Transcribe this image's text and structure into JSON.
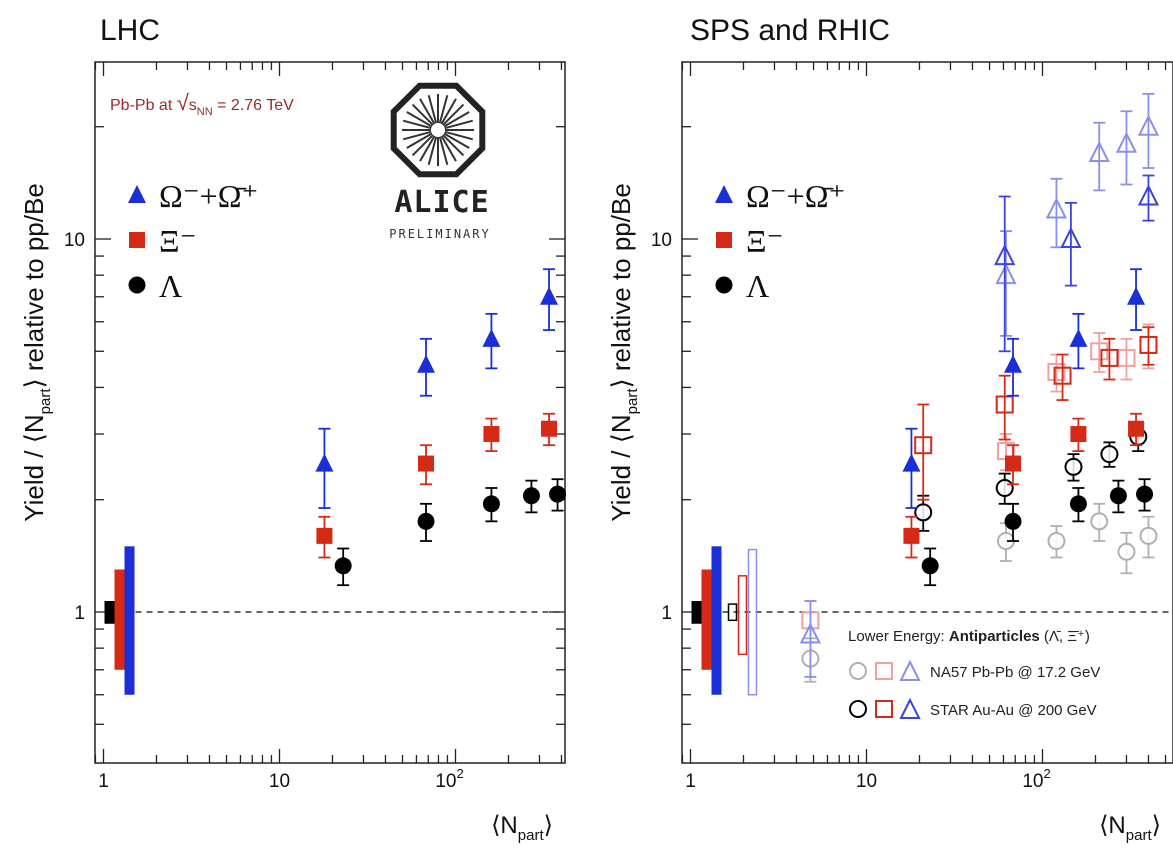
{
  "panels": [
    {
      "title": "LHC",
      "energy_label": "Pb-Pb at √s_NN = 2.76 TeV",
      "energy_text": {
        "pre": "Pb-Pb at ",
        "s": "s",
        "sub": "NN",
        "post": " = 2.76 TeV"
      },
      "logo": {
        "name": "ALICE",
        "sub": "PRELIMINARY"
      },
      "legend": [
        {
          "key": "omega",
          "label": "Ω⁻+Ω̄⁺",
          "color": "#1a2fd6"
        },
        {
          "key": "xi",
          "label": "Ξ⁻",
          "color": "#d42a16"
        },
        {
          "key": "lambda",
          "label": "Λ",
          "color": "#000000"
        }
      ]
    },
    {
      "title": "SPS and RHIC",
      "legend": [
        {
          "key": "omega",
          "label": "Ω⁻+Ω̄⁺",
          "color": "#1a2fd6"
        },
        {
          "key": "xi",
          "label": "Ξ⁻",
          "color": "#d42a16"
        },
        {
          "key": "lambda",
          "label": "Λ",
          "color": "#000000"
        }
      ],
      "lower_energy_legend": {
        "header_pre": "Lower Energy: ",
        "header_bold": "Antiparticles",
        "header_post": " (Λ̄, Ξ̄⁺)",
        "rows": [
          "NA57 Pb-Pb @ 17.2 GeV",
          "STAR Au-Au @ 200 GeV"
        ]
      }
    }
  ],
  "axes": {
    "ylabel": "Yield / ⟨N_part⟩ relative to pp/Be",
    "ylabel_parts": {
      "pre": "Yield / ⟨N",
      "sub": "part",
      "post": "⟩ relative to pp/Be"
    },
    "xlabel": "⟨N_part⟩",
    "xlabel_parts": {
      "pre": "⟨N",
      "sub": "part",
      "post": "⟩"
    },
    "x_ticks": [
      {
        "v": 1,
        "label": "1"
      },
      {
        "v": 10,
        "label": "10"
      },
      {
        "v": 100,
        "label": "10",
        "exp": "2"
      }
    ],
    "y_ticks": [
      {
        "v": 1,
        "label": "1"
      },
      {
        "v": 10,
        "label": "10"
      }
    ]
  },
  "chart_data": [
    {
      "type": "scatter",
      "title": "LHC",
      "x_scale": "log",
      "y_scale": "log",
      "xlim": [
        0.75,
        500
      ],
      "ylim": [
        0.43,
        28
      ],
      "reference_line": 1,
      "series": [
        {
          "name": "Ω⁻+Ω̄⁺",
          "marker": "filled-triangle",
          "color": "#1a2fd6",
          "x": [
            18,
            68,
            160,
            340
          ],
          "y": [
            2.5,
            4.6,
            5.4,
            7.0
          ],
          "yerr": [
            0.6,
            0.8,
            0.9,
            1.3
          ]
        },
        {
          "name": "Ξ⁻",
          "marker": "filled-square",
          "color": "#d42a16",
          "x": [
            18,
            68,
            160,
            340
          ],
          "y": [
            1.6,
            2.5,
            3.0,
            3.1
          ],
          "yerr": [
            0.2,
            0.3,
            0.3,
            0.3
          ]
        },
        {
          "name": "Λ",
          "marker": "filled-circle",
          "color": "#000000",
          "x": [
            23,
            68,
            160,
            270,
            380
          ],
          "y": [
            1.33,
            1.75,
            1.95,
            2.05,
            2.07
          ],
          "yerr": [
            0.15,
            0.2,
            0.2,
            0.2,
            0.2
          ]
        }
      ],
      "pp_normalization_uncertainty": [
        {
          "series": "Λ",
          "color": "#000000",
          "low": 0.93,
          "high": 1.07
        },
        {
          "series": "Ξ⁻",
          "color": "#d42a16",
          "low": 0.7,
          "high": 1.3
        },
        {
          "series": "Ω⁻+Ω̄⁺",
          "color": "#1a2fd6",
          "low": 0.6,
          "high": 1.5
        }
      ]
    },
    {
      "type": "scatter",
      "title": "SPS and RHIC",
      "x_scale": "log",
      "y_scale": "log",
      "xlim": [
        0.75,
        500
      ],
      "ylim": [
        0.43,
        28
      ],
      "reference_line": 1,
      "series": [
        {
          "name": "Ω⁻+Ω̄⁺",
          "marker": "filled-triangle",
          "color": "#1a2fd6",
          "x": [
            18,
            68,
            160,
            340
          ],
          "y": [
            2.5,
            4.6,
            5.4,
            7.0
          ],
          "yerr": [
            0.6,
            0.8,
            0.9,
            1.3
          ]
        },
        {
          "name": "Ξ⁻",
          "marker": "filled-square",
          "color": "#d42a16",
          "x": [
            18,
            68,
            160,
            340
          ],
          "y": [
            1.6,
            2.5,
            3.0,
            3.1
          ],
          "yerr": [
            0.2,
            0.3,
            0.3,
            0.3
          ]
        },
        {
          "name": "Λ",
          "marker": "filled-circle",
          "color": "#000000",
          "x": [
            23,
            68,
            160,
            270,
            380
          ],
          "y": [
            1.33,
            1.75,
            1.95,
            2.05,
            2.07
          ],
          "yerr": [
            0.15,
            0.2,
            0.2,
            0.2,
            0.2
          ]
        },
        {
          "name": "NA57 Pb-Pb @ 17.2 GeV",
          "particle": "Λ",
          "marker": "open-circle",
          "color": "#b0b0b0",
          "x": [
            4.8,
            62,
            120,
            210,
            300,
            400
          ],
          "y": [
            0.75,
            1.55,
            1.55,
            1.75,
            1.45,
            1.6
          ],
          "yerr": [
            0.1,
            0.18,
            0.15,
            0.2,
            0.18,
            0.2
          ]
        },
        {
          "name": "NA57 Pb-Pb @ 17.2 GeV",
          "particle": "Ξ",
          "marker": "open-square",
          "color": "#f0a0a0",
          "x": [
            4.8,
            62,
            120,
            210,
            300,
            400
          ],
          "y": [
            0.95,
            2.7,
            4.4,
            5.0,
            4.8,
            5.2
          ],
          "yerr": [
            0.12,
            0.3,
            0.5,
            0.6,
            0.6,
            0.7
          ]
        },
        {
          "name": "NA57 Pb-Pb @ 17.2 GeV",
          "particle": "Ω",
          "marker": "open-triangle",
          "color": "#8a90ea",
          "x": [
            4.8,
            62,
            120,
            210,
            300,
            400
          ],
          "y": [
            0.87,
            8.0,
            12.0,
            17.0,
            18.0,
            20.0
          ],
          "yerr": [
            0.2,
            2.5,
            2.5,
            3.5,
            4.0,
            4.5
          ]
        },
        {
          "name": "STAR Au-Au @ 200 GeV",
          "particle": "Λ",
          "marker": "open-circle",
          "color": "#000000",
          "x": [
            21,
            61,
            150,
            240,
            350
          ],
          "y": [
            1.85,
            2.15,
            2.45,
            2.65,
            2.95
          ],
          "yerr": [
            0.2,
            0.2,
            0.2,
            0.2,
            0.25
          ]
        },
        {
          "name": "STAR Au-Au @ 200 GeV",
          "particle": "Ξ",
          "marker": "open-square",
          "color": "#d42a16",
          "x": [
            21,
            61,
            130,
            240,
            400
          ],
          "y": [
            2.8,
            3.6,
            4.3,
            4.8,
            5.2
          ],
          "yerr": [
            0.8,
            0.7,
            0.6,
            0.6,
            0.6
          ]
        },
        {
          "name": "STAR Au-Au @ 200 GeV",
          "particle": "Ω",
          "marker": "open-triangle",
          "color": "#3a44e0",
          "x": [
            61,
            145,
            400
          ],
          "y": [
            9.0,
            10.0,
            13.0
          ],
          "yerr": [
            4.0,
            2.5,
            1.8
          ]
        }
      ],
      "pp_normalization_uncertainty": [
        {
          "series": "Λ",
          "color": "#000000",
          "low": 0.93,
          "high": 1.07
        },
        {
          "series": "Ξ⁻",
          "color": "#d42a16",
          "low": 0.7,
          "high": 1.3
        },
        {
          "series": "Ω⁻+Ω̄⁺",
          "color": "#1a2fd6",
          "low": 0.6,
          "high": 1.5
        }
      ],
      "lower_energy_normalization_uncertainty": [
        {
          "series": "Λ (open)",
          "color": "#000000",
          "low": 0.95,
          "high": 1.05
        },
        {
          "series": "Ξ (open)",
          "color": "#d42a16",
          "low": 0.77,
          "high": 1.25
        },
        {
          "series": "Ω (open)",
          "color": "#8a90ea",
          "low": 0.6,
          "high": 1.47
        }
      ]
    }
  ]
}
